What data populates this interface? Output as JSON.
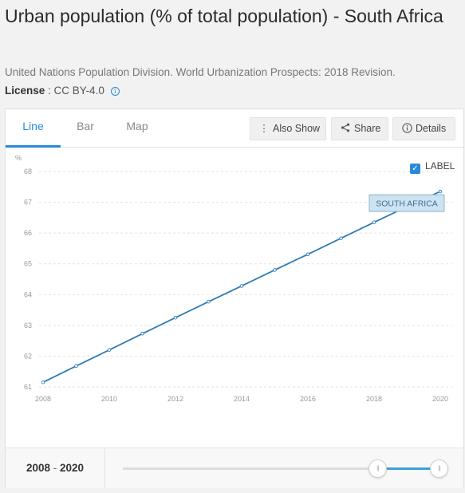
{
  "page": {
    "title": "Urban population (% of total population) - South Africa",
    "source": "United Nations Population Division. World Urbanization Prospects: 2018 Revision.",
    "license_label": "License",
    "license_sep": " : ",
    "license_value": "CC BY-4.0",
    "license_info_icon": "info-icon"
  },
  "tabs": [
    {
      "label": "Line",
      "active": true
    },
    {
      "label": "Bar",
      "active": false
    },
    {
      "label": "Map",
      "active": false
    }
  ],
  "toolbar": {
    "also_show": {
      "label": "Also Show",
      "icon": "kebab-icon"
    },
    "share": {
      "label": "Share",
      "icon": "share-icon"
    },
    "details": {
      "label": "Details",
      "icon": "info-icon"
    }
  },
  "label_toggle": {
    "label": "LABEL",
    "checked": true
  },
  "range": {
    "start": "2008",
    "sep": "-",
    "end": "2020"
  },
  "colors": {
    "accent": "#2a8ad9",
    "line": "#2e7bb4"
  },
  "chart_data": {
    "type": "line",
    "ylabel": "%",
    "xlabel": "",
    "ylim": [
      61,
      68
    ],
    "yticks": [
      61,
      62,
      63,
      64,
      65,
      66,
      67,
      68
    ],
    "xlim": [
      2008,
      2020
    ],
    "xticks": [
      2008,
      2010,
      2012,
      2014,
      2016,
      2018,
      2020
    ],
    "grid": true,
    "series": [
      {
        "name": "SOUTH AFRICA",
        "x": [
          2008,
          2009,
          2010,
          2011,
          2012,
          2013,
          2014,
          2015,
          2016,
          2017,
          2018,
          2019,
          2020
        ],
        "values": [
          61.15,
          61.68,
          62.2,
          62.73,
          63.25,
          63.77,
          64.28,
          64.8,
          65.31,
          65.83,
          66.35,
          66.86,
          67.35
        ]
      }
    ]
  }
}
